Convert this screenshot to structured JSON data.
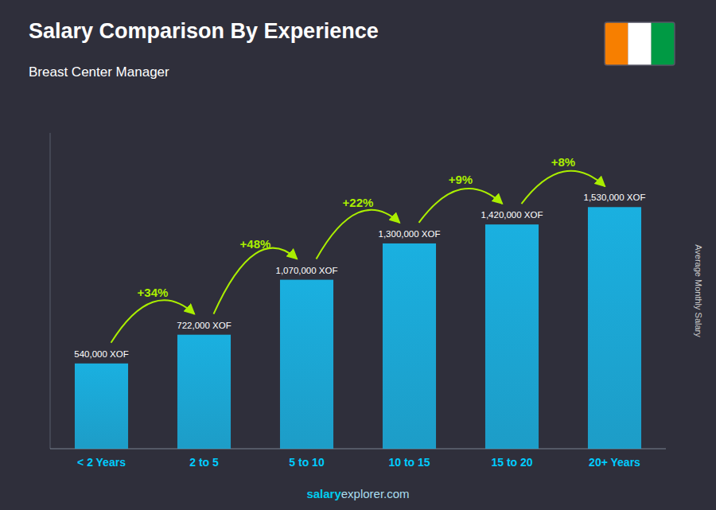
{
  "chart_data": {
    "type": "bar",
    "title": "Salary Comparison By Experience",
    "subtitle": "Breast Center Manager",
    "y_label": "Average Monthly Salary",
    "categories": [
      "< 2 Years",
      "2 to 5",
      "5 to 10",
      "10 to 15",
      "15 to 20",
      "20+ Years"
    ],
    "values": [
      540000,
      722000,
      1070000,
      1300000,
      1420000,
      1530000
    ],
    "value_labels": [
      "540,000 XOF",
      "722,000 XOF",
      "1,070,000 XOF",
      "1,300,000 XOF",
      "1,420,000 XOF",
      "1,530,000 XOF"
    ],
    "data_labels": true,
    "annotations": [
      "+34%",
      "+48%",
      "+22%",
      "+9%",
      "+8%"
    ],
    "footer": [
      "salary",
      "explorer.com"
    ],
    "flag_colors": [
      "#f77f00",
      "#ffffff",
      "#009a44"
    ],
    "color": "#1ab0e0",
    "ylim": [
      0,
      2000000
    ],
    "tick_labels": "x",
    "grid": false
  }
}
